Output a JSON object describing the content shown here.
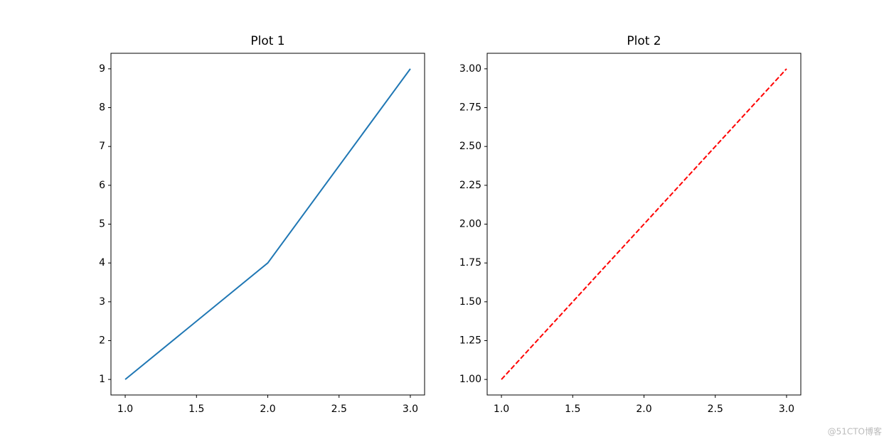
{
  "chart_data": [
    {
      "type": "line",
      "title": "Plot 1",
      "x": [
        1,
        2,
        3
      ],
      "values": [
        1,
        4,
        9
      ],
      "color": "#1f77b4",
      "linestyle": "solid",
      "xlim": [
        0.9,
        3.1
      ],
      "xticks": [
        {
          "value": 1,
          "label": "1.0"
        },
        {
          "value": 1.5,
          "label": "1.5"
        },
        {
          "value": 2,
          "label": "2.0"
        },
        {
          "value": 2.5,
          "label": "2.5"
        },
        {
          "value": 3,
          "label": "3.0"
        }
      ],
      "ylim": [
        0.6,
        9.4
      ],
      "yticks": [
        1,
        2,
        3,
        4,
        5,
        6,
        7,
        8,
        9
      ]
    },
    {
      "type": "line",
      "title": "Plot 2",
      "x": [
        1,
        2,
        3
      ],
      "values": [
        1,
        2,
        3
      ],
      "color": "#ff0000",
      "linestyle": "dashed",
      "xlim": [
        0.9,
        3.1
      ],
      "xticks": [
        {
          "value": 1,
          "label": "1.0"
        },
        {
          "value": 1.5,
          "label": "1.5"
        },
        {
          "value": 2,
          "label": "2.0"
        },
        {
          "value": 2.5,
          "label": "2.5"
        },
        {
          "value": 3,
          "label": "3.0"
        }
      ],
      "ylim": [
        0.9,
        3.1
      ],
      "yticks": [
        {
          "value": 1,
          "label": "1.00"
        },
        {
          "value": 1.25,
          "label": "1.25"
        },
        {
          "value": 1.5,
          "label": "1.50"
        },
        {
          "value": 1.75,
          "label": "1.75"
        },
        {
          "value": 2,
          "label": "2.00"
        },
        {
          "value": 2.25,
          "label": "2.25"
        },
        {
          "value": 2.5,
          "label": "2.50"
        },
        {
          "value": 2.75,
          "label": "2.75"
        },
        {
          "value": 3,
          "label": "3.00"
        }
      ]
    }
  ],
  "watermark": "@51CTO博客"
}
